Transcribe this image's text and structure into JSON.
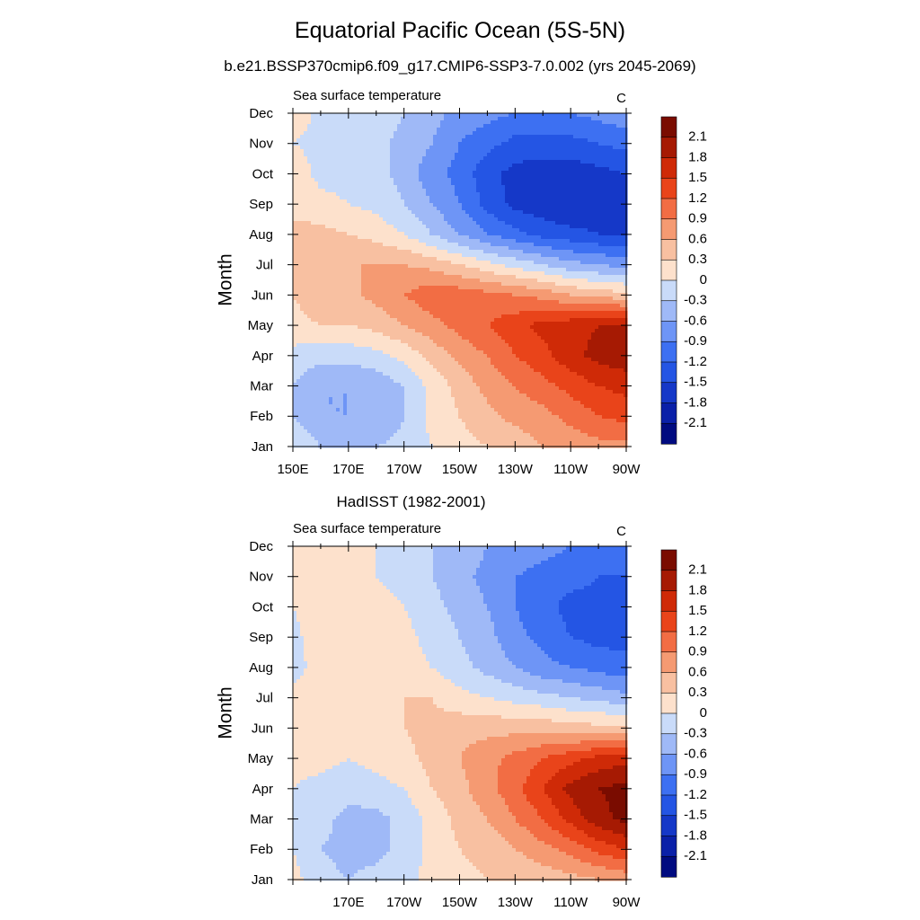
{
  "figure": {
    "title": "Equatorial Pacific Ocean (5S-5N)",
    "subtitle": "b.e21.BSSP370cmip6.f09_g17.CMIP6-SSP3-7.0.002 (yrs 2045-2069)"
  },
  "chart_data": [
    {
      "type": "heatmap",
      "panel_title": "",
      "left_label": "Sea surface temperature",
      "units": "C",
      "ylabel": "Month",
      "xlabel": "",
      "x_ticks": [
        "150E",
        "170E",
        "170W",
        "150W",
        "130W",
        "110W",
        "90W"
      ],
      "y_ticks": [
        "Jan",
        "Feb",
        "Mar",
        "Apr",
        "May",
        "Jun",
        "Jul",
        "Aug",
        "Sep",
        "Oct",
        "Nov",
        "Dec"
      ],
      "x_lon": [
        150,
        160,
        170,
        180,
        190,
        200,
        210,
        220,
        230,
        240,
        250,
        260,
        270
      ],
      "months": [
        "Jan",
        "Feb",
        "Mar",
        "Apr",
        "May",
        "Jun",
        "Jul",
        "Aug",
        "Sep",
        "Oct",
        "Nov",
        "Dec"
      ],
      "values": [
        [
          0.0,
          -0.3,
          -0.3,
          -0.3,
          -0.2,
          0.0,
          0.2,
          0.3,
          0.4,
          0.6,
          0.7,
          0.8,
          0.8
        ],
        [
          -0.3,
          -0.6,
          -0.6,
          -0.6,
          -0.3,
          0.1,
          0.3,
          0.5,
          0.7,
          0.8,
          1.0,
          1.2,
          1.3
        ],
        [
          -0.3,
          -0.6,
          -0.6,
          -0.5,
          -0.3,
          0.1,
          0.4,
          0.7,
          0.9,
          1.1,
          1.3,
          1.5,
          1.6
        ],
        [
          -0.1,
          -0.2,
          -0.2,
          -0.1,
          0.1,
          0.4,
          0.7,
          0.9,
          1.2,
          1.4,
          1.7,
          1.9,
          2.0
        ],
        [
          0.2,
          0.3,
          0.3,
          0.4,
          0.6,
          0.8,
          1.0,
          1.2,
          1.4,
          1.6,
          1.7,
          1.8,
          1.8
        ],
        [
          0.3,
          0.5,
          0.5,
          0.7,
          0.9,
          1.1,
          1.1,
          1.0,
          0.9,
          0.8,
          0.6,
          0.5,
          0.4
        ],
        [
          0.3,
          0.5,
          0.6,
          0.6,
          0.6,
          0.5,
          0.3,
          0.1,
          -0.1,
          -0.3,
          -0.5,
          -0.6,
          -0.7
        ],
        [
          0.4,
          0.4,
          0.3,
          0.2,
          0.0,
          -0.3,
          -0.6,
          -0.9,
          -1.1,
          -1.3,
          -1.4,
          -1.5,
          -1.5
        ],
        [
          0.2,
          0.1,
          0.0,
          -0.1,
          -0.3,
          -0.6,
          -0.9,
          -1.3,
          -1.6,
          -1.7,
          -1.8,
          -1.7,
          -1.6
        ],
        [
          0.2,
          -0.1,
          -0.1,
          -0.2,
          -0.4,
          -0.8,
          -1.0,
          -1.4,
          -1.6,
          -1.7,
          -1.7,
          -1.6,
          -1.5
        ],
        [
          0.0,
          -0.1,
          -0.2,
          -0.2,
          -0.4,
          -0.6,
          -0.9,
          -1.1,
          -1.3,
          -1.3,
          -1.3,
          -1.2,
          -1.1
        ],
        [
          0.2,
          -0.1,
          -0.1,
          -0.1,
          -0.3,
          -0.5,
          -0.7,
          -0.8,
          -0.9,
          -0.9,
          -0.9,
          -0.8,
          -0.7
        ]
      ],
      "levels": [
        -2.1,
        -1.8,
        -1.5,
        -1.2,
        -0.9,
        -0.6,
        -0.3,
        0,
        0.3,
        0.6,
        0.9,
        1.2,
        1.5,
        1.8,
        2.1
      ],
      "colorbar_labels": [
        "2.1",
        "1.8",
        "1.5",
        "1.2",
        "0.9",
        "0.6",
        "0.3",
        "0",
        "-0.3",
        "-0.6",
        "-0.9",
        "-1.2",
        "-1.5",
        "-1.8",
        "-2.1"
      ],
      "colors": [
        "#000b80",
        "#0a20a8",
        "#1538c8",
        "#2455e4",
        "#3d70f2",
        "#6e95f6",
        "#9fb9f7",
        "#c9dbf9",
        "#fde1cc",
        "#f8c0a1",
        "#f59a72",
        "#f26d44",
        "#e9441a",
        "#cf2a07",
        "#a61a03",
        "#7a0c00"
      ]
    },
    {
      "type": "heatmap",
      "panel_title": "HadISST (1982-2001)",
      "left_label": "Sea surface temperature",
      "units": "C",
      "ylabel": "Month",
      "xlabel": "",
      "x_ticks": [
        "",
        "170E",
        "170W",
        "150W",
        "130W",
        "110W",
        "90W"
      ],
      "y_ticks": [
        "Jan",
        "Feb",
        "Mar",
        "Apr",
        "May",
        "Jun",
        "Jul",
        "Aug",
        "Sep",
        "Oct",
        "Nov",
        "Dec"
      ],
      "x_lon": [
        150,
        160,
        170,
        180,
        190,
        200,
        210,
        220,
        230,
        240,
        250,
        260,
        270
      ],
      "months": [
        "Jan",
        "Feb",
        "Mar",
        "Apr",
        "May",
        "Jun",
        "Jul",
        "Aug",
        "Sep",
        "Oct",
        "Nov",
        "Dec"
      ],
      "values": [
        [
          0.1,
          -0.2,
          -0.3,
          -0.2,
          -0.1,
          0.1,
          0.2,
          0.3,
          0.3,
          0.4,
          0.5,
          0.6,
          0.7
        ],
        [
          0.0,
          -0.3,
          -0.4,
          -0.4,
          -0.2,
          0.1,
          0.3,
          0.4,
          0.6,
          0.8,
          1.0,
          1.3,
          1.5
        ],
        [
          0.0,
          -0.2,
          -0.4,
          -0.4,
          -0.2,
          0.1,
          0.4,
          0.6,
          0.9,
          1.2,
          1.6,
          2.0,
          2.2
        ],
        [
          0.0,
          -0.1,
          -0.2,
          -0.1,
          0.0,
          0.3,
          0.5,
          0.8,
          1.1,
          1.5,
          1.9,
          2.1,
          2.2
        ],
        [
          0.1,
          0.1,
          0.0,
          0.1,
          0.2,
          0.4,
          0.6,
          0.8,
          1.0,
          1.2,
          1.4,
          1.6,
          1.7
        ],
        [
          0.2,
          0.2,
          0.1,
          0.2,
          0.3,
          0.4,
          0.5,
          0.5,
          0.5,
          0.5,
          0.4,
          0.4,
          0.4
        ],
        [
          0.1,
          0.1,
          0.2,
          0.3,
          0.3,
          0.3,
          0.1,
          0.0,
          -0.1,
          -0.2,
          -0.3,
          -0.4,
          -0.5
        ],
        [
          -0.1,
          0.1,
          0.2,
          0.2,
          0.1,
          0.0,
          -0.2,
          -0.4,
          -0.6,
          -0.8,
          -0.9,
          -1.0,
          -1.1
        ],
        [
          -0.1,
          0.2,
          0.3,
          0.2,
          0.1,
          -0.1,
          -0.3,
          -0.5,
          -0.8,
          -1.0,
          -1.2,
          -1.3,
          -1.3
        ],
        [
          0.0,
          0.2,
          0.2,
          0.1,
          0.0,
          -0.2,
          -0.4,
          -0.6,
          -0.9,
          -1.1,
          -1.3,
          -1.3,
          -1.3
        ],
        [
          0.1,
          0.2,
          0.1,
          0.0,
          -0.1,
          -0.3,
          -0.5,
          -0.7,
          -0.9,
          -1.0,
          -1.1,
          -1.2,
          -1.2
        ],
        [
          0.2,
          0.2,
          0.1,
          0.0,
          -0.1,
          -0.3,
          -0.4,
          -0.6,
          -0.7,
          -0.8,
          -0.9,
          -1.0,
          -1.1
        ]
      ],
      "levels": [
        -2.1,
        -1.8,
        -1.5,
        -1.2,
        -0.9,
        -0.6,
        -0.3,
        0,
        0.3,
        0.6,
        0.9,
        1.2,
        1.5,
        1.8,
        2.1
      ],
      "colorbar_labels": [
        "2.1",
        "1.8",
        "1.5",
        "1.2",
        "0.9",
        "0.6",
        "0.3",
        "0",
        "-0.3",
        "-0.6",
        "-0.9",
        "-1.2",
        "-1.5",
        "-1.8",
        "-2.1"
      ],
      "colors": [
        "#000b80",
        "#0a20a8",
        "#1538c8",
        "#2455e4",
        "#3d70f2",
        "#6e95f6",
        "#9fb9f7",
        "#c9dbf9",
        "#fde1cc",
        "#f8c0a1",
        "#f59a72",
        "#f26d44",
        "#e9441a",
        "#cf2a07",
        "#a61a03",
        "#7a0c00"
      ]
    }
  ]
}
